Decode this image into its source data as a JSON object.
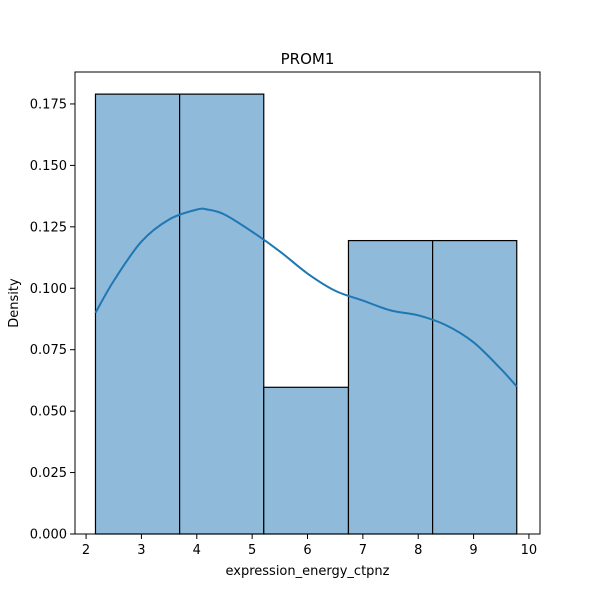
{
  "chart_data": {
    "type": "bar",
    "subtype": "histogram-with-kde",
    "title": "PROM1",
    "xlabel": "expression_energy_ctpnz",
    "ylabel": "Density",
    "xlim": [
      1.8,
      10.2
    ],
    "ylim": [
      0,
      0.188
    ],
    "xticks": [
      2,
      3,
      4,
      5,
      6,
      7,
      8,
      9,
      10
    ],
    "yticks": [
      0.0,
      0.025,
      0.05,
      0.075,
      0.1,
      0.125,
      0.15,
      0.175
    ],
    "ytick_labels": [
      "0.000",
      "0.025",
      "0.050",
      "0.075",
      "0.100",
      "0.125",
      "0.150",
      "0.175"
    ],
    "bins": [
      {
        "x0": 2.17,
        "x1": 3.69,
        "density": 0.179
      },
      {
        "x0": 3.69,
        "x1": 5.21,
        "density": 0.179
      },
      {
        "x0": 5.21,
        "x1": 6.74,
        "density": 0.0597
      },
      {
        "x0": 6.74,
        "x1": 8.26,
        "density": 0.1194
      },
      {
        "x0": 8.26,
        "x1": 9.78,
        "density": 0.1194
      }
    ],
    "kde": {
      "x": [
        2.17,
        2.5,
        3.0,
        3.5,
        4.0,
        4.2,
        4.5,
        5.0,
        5.5,
        6.0,
        6.5,
        7.0,
        7.5,
        8.0,
        8.5,
        9.0,
        9.5,
        9.78
      ],
      "y": [
        0.09,
        0.103,
        0.119,
        0.128,
        0.132,
        0.132,
        0.13,
        0.123,
        0.115,
        0.106,
        0.099,
        0.095,
        0.091,
        0.089,
        0.085,
        0.078,
        0.067,
        0.06
      ]
    },
    "colors": {
      "bar_fill": "#8fbad9",
      "bar_edge": "#000000",
      "kde_line": "#1f77b4"
    },
    "grid": false,
    "legend": "none"
  }
}
